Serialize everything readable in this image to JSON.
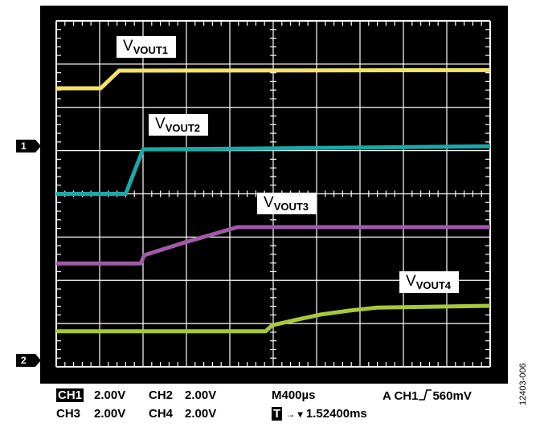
{
  "chart_data": {
    "type": "line",
    "title": "",
    "xlabel": "",
    "ylabel": "",
    "x_units": "ms (from left edge of screen)",
    "y_units": "divisions (from bottom of screen)",
    "xlim": [
      0,
      4
    ],
    "ylim": [
      0,
      8
    ],
    "grid": true,
    "divisions": {
      "horizontal": 10,
      "vertical": 8
    },
    "background": "#000000",
    "series": [
      {
        "name": "VOUT1",
        "label_main": "V",
        "label_sub": "VOUT1",
        "color": "#f5e36a",
        "points": [
          [
            0,
            6.44
          ],
          [
            0.41,
            6.44
          ],
          [
            0.58,
            6.85
          ],
          [
            4,
            6.86
          ]
        ]
      },
      {
        "name": "VOUT2",
        "label_main": "V",
        "label_sub": "VOUT2",
        "color": "#1aa9a6",
        "points": [
          [
            0,
            4.0
          ],
          [
            0.64,
            4.0
          ],
          [
            0.8,
            5.03
          ],
          [
            2.0,
            5.05
          ],
          [
            4,
            5.1
          ]
        ]
      },
      {
        "name": "VOUT3",
        "label_main": "V",
        "label_sub": "VOUT3",
        "color": "#a05aa8",
        "points": [
          [
            0,
            2.39
          ],
          [
            0.78,
            2.39
          ],
          [
            0.81,
            2.58
          ],
          [
            1.19,
            2.88
          ],
          [
            1.45,
            3.07
          ],
          [
            1.67,
            3.23
          ],
          [
            4,
            3.23
          ]
        ]
      },
      {
        "name": "VOUT4",
        "label_main": "V",
        "label_sub": "VOUT4",
        "color": "#a8c83a",
        "points": [
          [
            0,
            0.82
          ],
          [
            1.93,
            0.82
          ],
          [
            1.99,
            0.96
          ],
          [
            2.2,
            1.08
          ],
          [
            2.44,
            1.21
          ],
          [
            2.7,
            1.3
          ],
          [
            2.96,
            1.37
          ],
          [
            4,
            1.41
          ]
        ]
      }
    ]
  },
  "markers": [
    "1",
    "2"
  ],
  "status": {
    "ch1": "CH1",
    "ch1_scale": "2.00V",
    "ch2": "CH2",
    "ch2_scale": "2.00V",
    "ch3": "CH3",
    "ch3_scale": "2.00V",
    "ch4": "CH4",
    "ch4_scale": "2.00V",
    "timebase": "M400µs",
    "trigger": "A  CH1",
    "trigger_level": "560mV",
    "trigger_box": "T",
    "trigger_arrow": "→ ▾",
    "trigger_pos": "1.52400ms"
  },
  "figure_id": "12403-006"
}
